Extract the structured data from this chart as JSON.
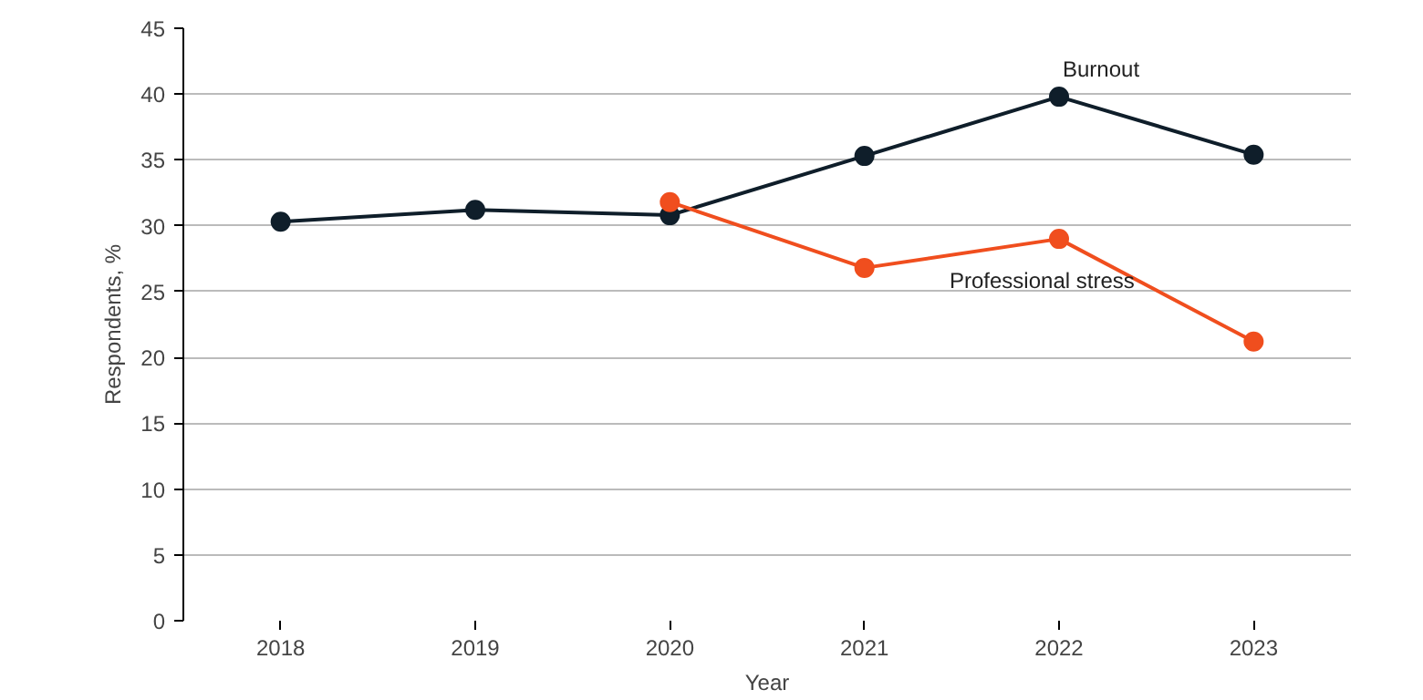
{
  "chart_data": {
    "type": "line",
    "xlabel": "Year",
    "ylabel": "Respondents, %",
    "categories": [
      "2018",
      "2019",
      "2020",
      "2021",
      "2022",
      "2023"
    ],
    "series": [
      {
        "name": "Burnout",
        "color": "#0f1e2a",
        "values": [
          30.3,
          31.2,
          30.8,
          35.3,
          39.8,
          35.4
        ]
      },
      {
        "name": "Professional stress",
        "color": "#f04e1e",
        "values": [
          null,
          null,
          31.8,
          26.8,
          29.0,
          21.2
        ]
      }
    ],
    "ylim": [
      0,
      45
    ],
    "yticks": [
      0,
      5,
      10,
      15,
      20,
      25,
      30,
      35,
      40,
      45
    ],
    "grid": "y",
    "marker": "circle",
    "line_style": "solid"
  }
}
